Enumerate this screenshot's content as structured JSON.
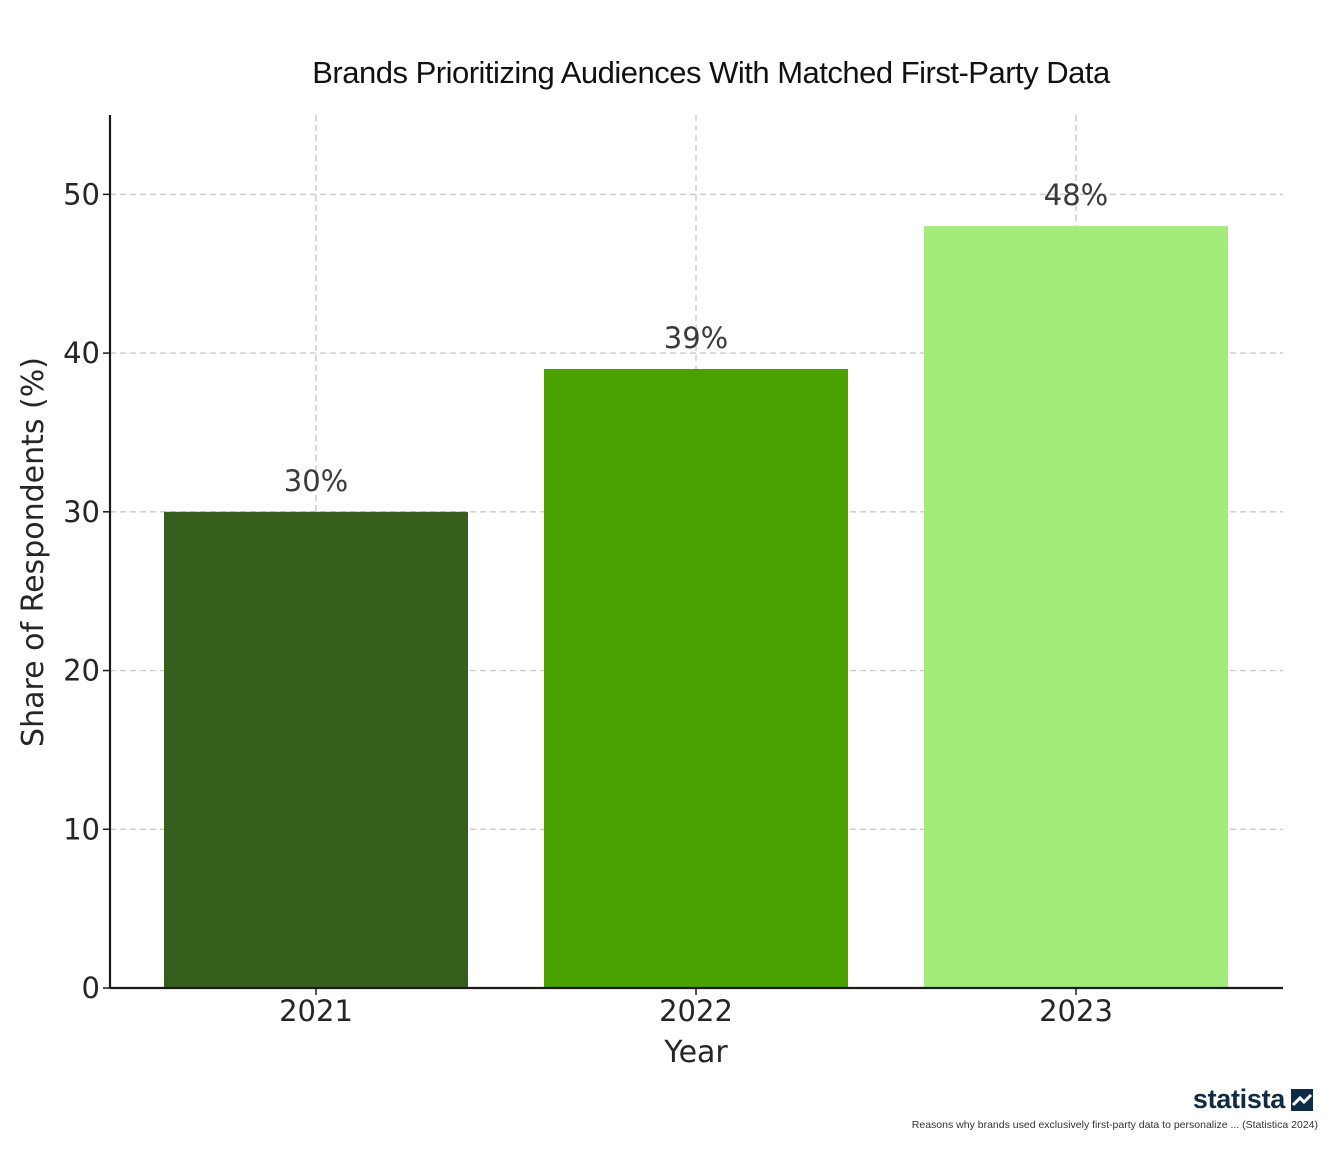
{
  "chart_data": {
    "type": "bar",
    "title": "Brands Prioritizing Audiences With Matched First-Party Data",
    "xlabel": "Year",
    "ylabel": "Share of Respondents (%)",
    "categories": [
      "2021",
      "2022",
      "2023"
    ],
    "values": [
      30,
      39,
      48
    ],
    "data_labels": [
      "30%",
      "39%",
      "48%"
    ],
    "colors": [
      "#365f1e",
      "#4aa200",
      "#a3ec7c"
    ],
    "ylim": [
      0,
      55
    ],
    "yticks": [
      0,
      10,
      20,
      30,
      40,
      50
    ],
    "grid": true
  },
  "footer": {
    "brand": "statista",
    "brand_color": "#0f2b46",
    "source": "Reasons why brands used exclusively first-party data to personalize ... (Statistica 2024)"
  }
}
